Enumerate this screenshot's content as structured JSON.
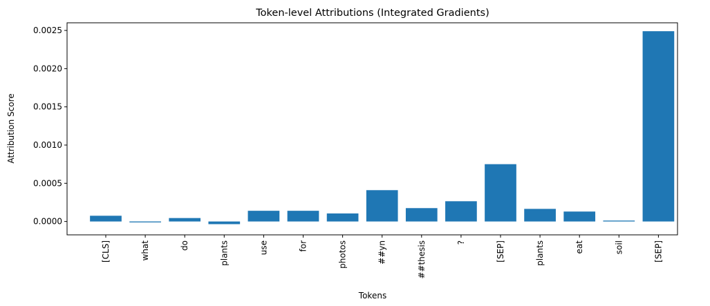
{
  "chart_data": {
    "type": "bar",
    "title": "Token-level Attributions (Integrated Gradients)",
    "xlabel": "Tokens",
    "ylabel": "Attribution Score",
    "categories": [
      "[CLS]",
      "what",
      "do",
      "plants",
      "use",
      "for",
      "photos",
      "##yn",
      "##thesis",
      "?",
      "[SEP]",
      "plants",
      "eat",
      "soil",
      "[SEP]"
    ],
    "values": [
      7.5e-05,
      -1.2e-05,
      4.5e-05,
      -3.5e-05,
      0.00014,
      0.00014,
      0.000105,
      0.00041,
      0.000175,
      0.000265,
      0.00075,
      0.000165,
      0.00013,
      1.2e-05,
      0.00249
    ],
    "yticks": [
      "0.0000",
      "0.0005",
      "0.0010",
      "0.0015",
      "0.0020",
      "0.0025"
    ],
    "ylim": [
      -0.000175,
      0.0026
    ],
    "grid": false,
    "bar_color": "#1f77b4"
  }
}
